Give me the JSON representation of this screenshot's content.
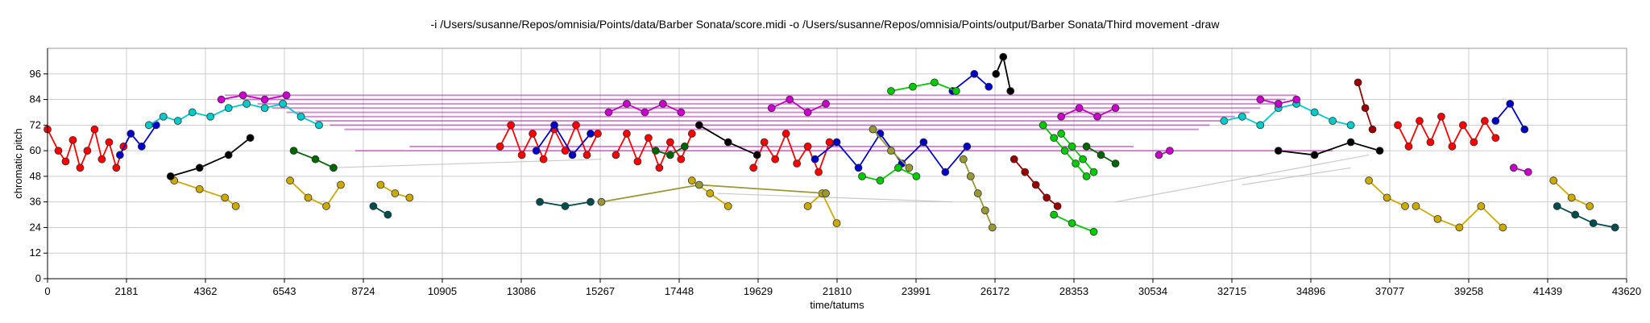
{
  "chart_data": {
    "type": "scatter",
    "title": "-i /Users/susanne/Repos/omnisia/Points/data/Barber Sonata/score.midi -o /Users/susanne/Repos/omnisia/Points/output/Barber Sonata/Third movement -draw",
    "xlabel": "time/tatums",
    "ylabel": "chromatic pitch",
    "xlim": [
      0,
      43620
    ],
    "ylim": [
      0,
      108
    ],
    "xticks": [
      0,
      2181,
      4362,
      6543,
      8724,
      10905,
      13086,
      15267,
      17448,
      19629,
      21810,
      23991,
      26172,
      28353,
      30534,
      32715,
      34896,
      37077,
      39258,
      41439,
      43620
    ],
    "yticks": [
      0,
      12,
      24,
      36,
      48,
      60,
      72,
      84,
      96
    ],
    "grid": true,
    "legend": "none",
    "series": [
      {
        "color": "#ff0000",
        "segments": [
          [
            [
              0,
              70
            ],
            [
              300,
              60
            ],
            [
              500,
              55
            ],
            [
              700,
              65
            ],
            [
              900,
              52
            ],
            [
              1100,
              60
            ],
            [
              1300,
              70
            ],
            [
              1500,
              56
            ],
            [
              1700,
              64
            ],
            [
              1900,
              52
            ],
            [
              2100,
              62
            ]
          ],
          [
            [
              12500,
              62
            ],
            [
              12800,
              72
            ],
            [
              13100,
              58
            ],
            [
              13400,
              68
            ],
            [
              13700,
              56
            ],
            [
              14000,
              70
            ],
            [
              14300,
              60
            ],
            [
              14600,
              72
            ],
            [
              14900,
              58
            ],
            [
              15200,
              68
            ]
          ],
          [
            [
              15700,
              58
            ],
            [
              16000,
              68
            ],
            [
              16300,
              55
            ],
            [
              16600,
              66
            ],
            [
              16900,
              52
            ],
            [
              17200,
              64
            ],
            [
              17500,
              56
            ],
            [
              17800,
              68
            ]
          ],
          [
            [
              19500,
              52
            ],
            [
              19800,
              64
            ],
            [
              20100,
              56
            ],
            [
              20400,
              68
            ],
            [
              20700,
              54
            ],
            [
              21000,
              62
            ],
            [
              21300,
              50
            ],
            [
              21600,
              64
            ]
          ],
          [
            [
              37300,
              72
            ],
            [
              37600,
              62
            ],
            [
              37900,
              74
            ],
            [
              38200,
              64
            ],
            [
              38500,
              76
            ],
            [
              38800,
              62
            ],
            [
              39100,
              72
            ],
            [
              39400,
              64
            ],
            [
              39700,
              74
            ],
            [
              40000,
              66
            ]
          ]
        ]
      },
      {
        "color": "#0000cc",
        "segments": [
          [
            [
              2000,
              58
            ],
            [
              2300,
              68
            ],
            [
              2600,
              62
            ],
            [
              3000,
              72
            ]
          ],
          [
            [
              13500,
              60
            ],
            [
              14000,
              72
            ],
            [
              14500,
              58
            ],
            [
              15000,
              68
            ]
          ],
          [
            [
              21200,
              56
            ],
            [
              21800,
              64
            ],
            [
              22400,
              52
            ],
            [
              23000,
              68
            ],
            [
              23600,
              54
            ],
            [
              24200,
              64
            ],
            [
              24800,
              50
            ],
            [
              25400,
              62
            ]
          ],
          [
            [
              25000,
              88
            ],
            [
              25600,
              96
            ],
            [
              26000,
              90
            ]
          ],
          [
            [
              40000,
              74
            ],
            [
              40400,
              82
            ],
            [
              40800,
              70
            ]
          ]
        ]
      },
      {
        "color": "#00cccc",
        "segments": [
          [
            [
              2800,
              72
            ],
            [
              3200,
              76
            ],
            [
              3600,
              74
            ],
            [
              4000,
              78
            ],
            [
              4500,
              76
            ],
            [
              5000,
              80
            ],
            [
              5500,
              82
            ],
            [
              6000,
              80
            ],
            [
              6500,
              82
            ],
            [
              7000,
              76
            ],
            [
              7500,
              72
            ]
          ],
          [
            [
              32500,
              74
            ],
            [
              33000,
              76
            ],
            [
              33500,
              72
            ],
            [
              34000,
              80
            ],
            [
              34500,
              82
            ],
            [
              35000,
              78
            ],
            [
              35500,
              74
            ],
            [
              36000,
              72
            ]
          ]
        ]
      },
      {
        "color": "#cc00cc",
        "segments": [
          [
            [
              4800,
              84
            ],
            [
              5400,
              86
            ],
            [
              6000,
              84
            ],
            [
              6600,
              86
            ]
          ],
          [
            [
              15500,
              78
            ],
            [
              16000,
              82
            ],
            [
              16500,
              78
            ],
            [
              17000,
              82
            ],
            [
              17500,
              78
            ]
          ],
          [
            [
              20000,
              80
            ],
            [
              20500,
              84
            ],
            [
              21000,
              78
            ],
            [
              21500,
              82
            ]
          ],
          [
            [
              28000,
              76
            ],
            [
              28500,
              80
            ],
            [
              29000,
              76
            ],
            [
              29500,
              80
            ]
          ],
          [
            [
              30700,
              58
            ],
            [
              31000,
              60
            ]
          ],
          [
            [
              33500,
              84
            ],
            [
              34000,
              82
            ],
            [
              34500,
              84
            ]
          ],
          [
            [
              40500,
              52
            ],
            [
              40900,
              50
            ]
          ]
        ]
      },
      {
        "color": "#00cc00",
        "segments": [
          [
            [
              22500,
              48
            ],
            [
              23000,
              46
            ],
            [
              23500,
              52
            ],
            [
              24000,
              48
            ]
          ],
          [
            [
              23300,
              88
            ],
            [
              23900,
              90
            ],
            [
              24500,
              92
            ],
            [
              25100,
              88
            ]
          ],
          [
            [
              27500,
              72
            ],
            [
              27800,
              66
            ],
            [
              28100,
              60
            ],
            [
              28400,
              54
            ],
            [
              28700,
              48
            ]
          ],
          [
            [
              28000,
              68
            ],
            [
              28300,
              62
            ],
            [
              28600,
              56
            ],
            [
              28900,
              50
            ]
          ],
          [
            [
              27800,
              30
            ],
            [
              28300,
              26
            ],
            [
              28900,
              22
            ]
          ]
        ]
      },
      {
        "color": "#ccaa00",
        "segments": [
          [
            [
              3500,
              46
            ],
            [
              4200,
              42
            ],
            [
              4900,
              38
            ],
            [
              5200,
              34
            ]
          ],
          [
            [
              6700,
              46
            ],
            [
              7200,
              38
            ],
            [
              7700,
              34
            ],
            [
              8100,
              44
            ]
          ],
          [
            [
              9200,
              44
            ],
            [
              9600,
              40
            ],
            [
              10000,
              38
            ]
          ],
          [
            [
              17800,
              46
            ],
            [
              18300,
              40
            ],
            [
              18800,
              34
            ]
          ],
          [
            [
              21000,
              34
            ],
            [
              21400,
              40
            ],
            [
              21800,
              26
            ]
          ],
          [
            [
              36500,
              46
            ],
            [
              37000,
              38
            ],
            [
              37500,
              34
            ]
          ],
          [
            [
              37800,
              34
            ],
            [
              38400,
              28
            ],
            [
              39000,
              24
            ],
            [
              39600,
              34
            ],
            [
              40200,
              24
            ]
          ],
          [
            [
              41600,
              46
            ],
            [
              42100,
              38
            ],
            [
              42600,
              34
            ]
          ]
        ]
      },
      {
        "color": "#004d4d",
        "segments": [
          [
            [
              9000,
              34
            ],
            [
              9400,
              30
            ]
          ],
          [
            [
              13600,
              36
            ],
            [
              14300,
              34
            ],
            [
              15000,
              36
            ]
          ],
          [
            [
              41700,
              34
            ],
            [
              42200,
              30
            ],
            [
              42700,
              26
            ],
            [
              43300,
              24
            ]
          ]
        ]
      },
      {
        "color": "#999933",
        "segments": [
          [
            [
              25300,
              56
            ],
            [
              25500,
              48
            ],
            [
              25700,
              40
            ],
            [
              25900,
              32
            ],
            [
              26100,
              24
            ]
          ],
          [
            [
              15300,
              36
            ],
            [
              18000,
              44
            ],
            [
              21500,
              40
            ]
          ],
          [
            [
              22800,
              70
            ],
            [
              23300,
              60
            ],
            [
              23800,
              52
            ]
          ]
        ]
      },
      {
        "color": "#000000",
        "segments": [
          [
            [
              3400,
              48
            ],
            [
              4200,
              52
            ],
            [
              5000,
              58
            ],
            [
              5600,
              66
            ]
          ],
          [
            [
              18000,
              72
            ],
            [
              18800,
              64
            ],
            [
              19600,
              58
            ]
          ],
          [
            [
              26200,
              96
            ],
            [
              26400,
              104
            ],
            [
              26600,
              88
            ]
          ],
          [
            [
              34000,
              60
            ],
            [
              35000,
              58
            ],
            [
              36000,
              64
            ],
            [
              36800,
              60
            ]
          ]
        ]
      },
      {
        "color": "#990000",
        "segments": [
          [
            [
              26700,
              56
            ],
            [
              27000,
              50
            ],
            [
              27300,
              44
            ],
            [
              27600,
              38
            ],
            [
              27900,
              34
            ]
          ],
          [
            [
              36200,
              92
            ],
            [
              36400,
              80
            ],
            [
              36600,
              70
            ]
          ]
        ]
      },
      {
        "color": "#006600",
        "segments": [
          [
            [
              6800,
              60
            ],
            [
              7400,
              56
            ],
            [
              7900,
              52
            ]
          ],
          [
            [
              16800,
              60
            ],
            [
              17200,
              58
            ],
            [
              17600,
              62
            ]
          ],
          [
            [
              28700,
              62
            ],
            [
              29100,
              58
            ],
            [
              29500,
              54
            ]
          ]
        ]
      }
    ],
    "horizontal_bands": {
      "color": "#aa33aa",
      "pitches": [
        86,
        84,
        82,
        80,
        78,
        76,
        74,
        72,
        70
      ],
      "starts": [
        4900,
        5400,
        5800,
        6200,
        6600,
        7000,
        7400,
        7800,
        8200
      ],
      "ends": [
        34500,
        34200,
        33900,
        33500,
        33200,
        32800,
        32500,
        32100,
        31800
      ]
    },
    "magenta_lines": {
      "color": "#cc33cc",
      "segments": [
        [
          [
            8500,
            60
          ],
          [
            35500,
            60
          ]
        ],
        [
          [
            10000,
            62
          ],
          [
            30000,
            62
          ]
        ]
      ]
    },
    "gray_lines": {
      "color": "#bbbbbb",
      "segments": [
        [
          [
            7800,
            52
          ],
          [
            15300,
            56
          ]
        ],
        [
          [
            18500,
            40
          ],
          [
            25000,
            36
          ]
        ],
        [
          [
            29500,
            36
          ],
          [
            36500,
            58
          ]
        ],
        [
          [
            33000,
            44
          ],
          [
            36000,
            52
          ]
        ]
      ]
    }
  }
}
